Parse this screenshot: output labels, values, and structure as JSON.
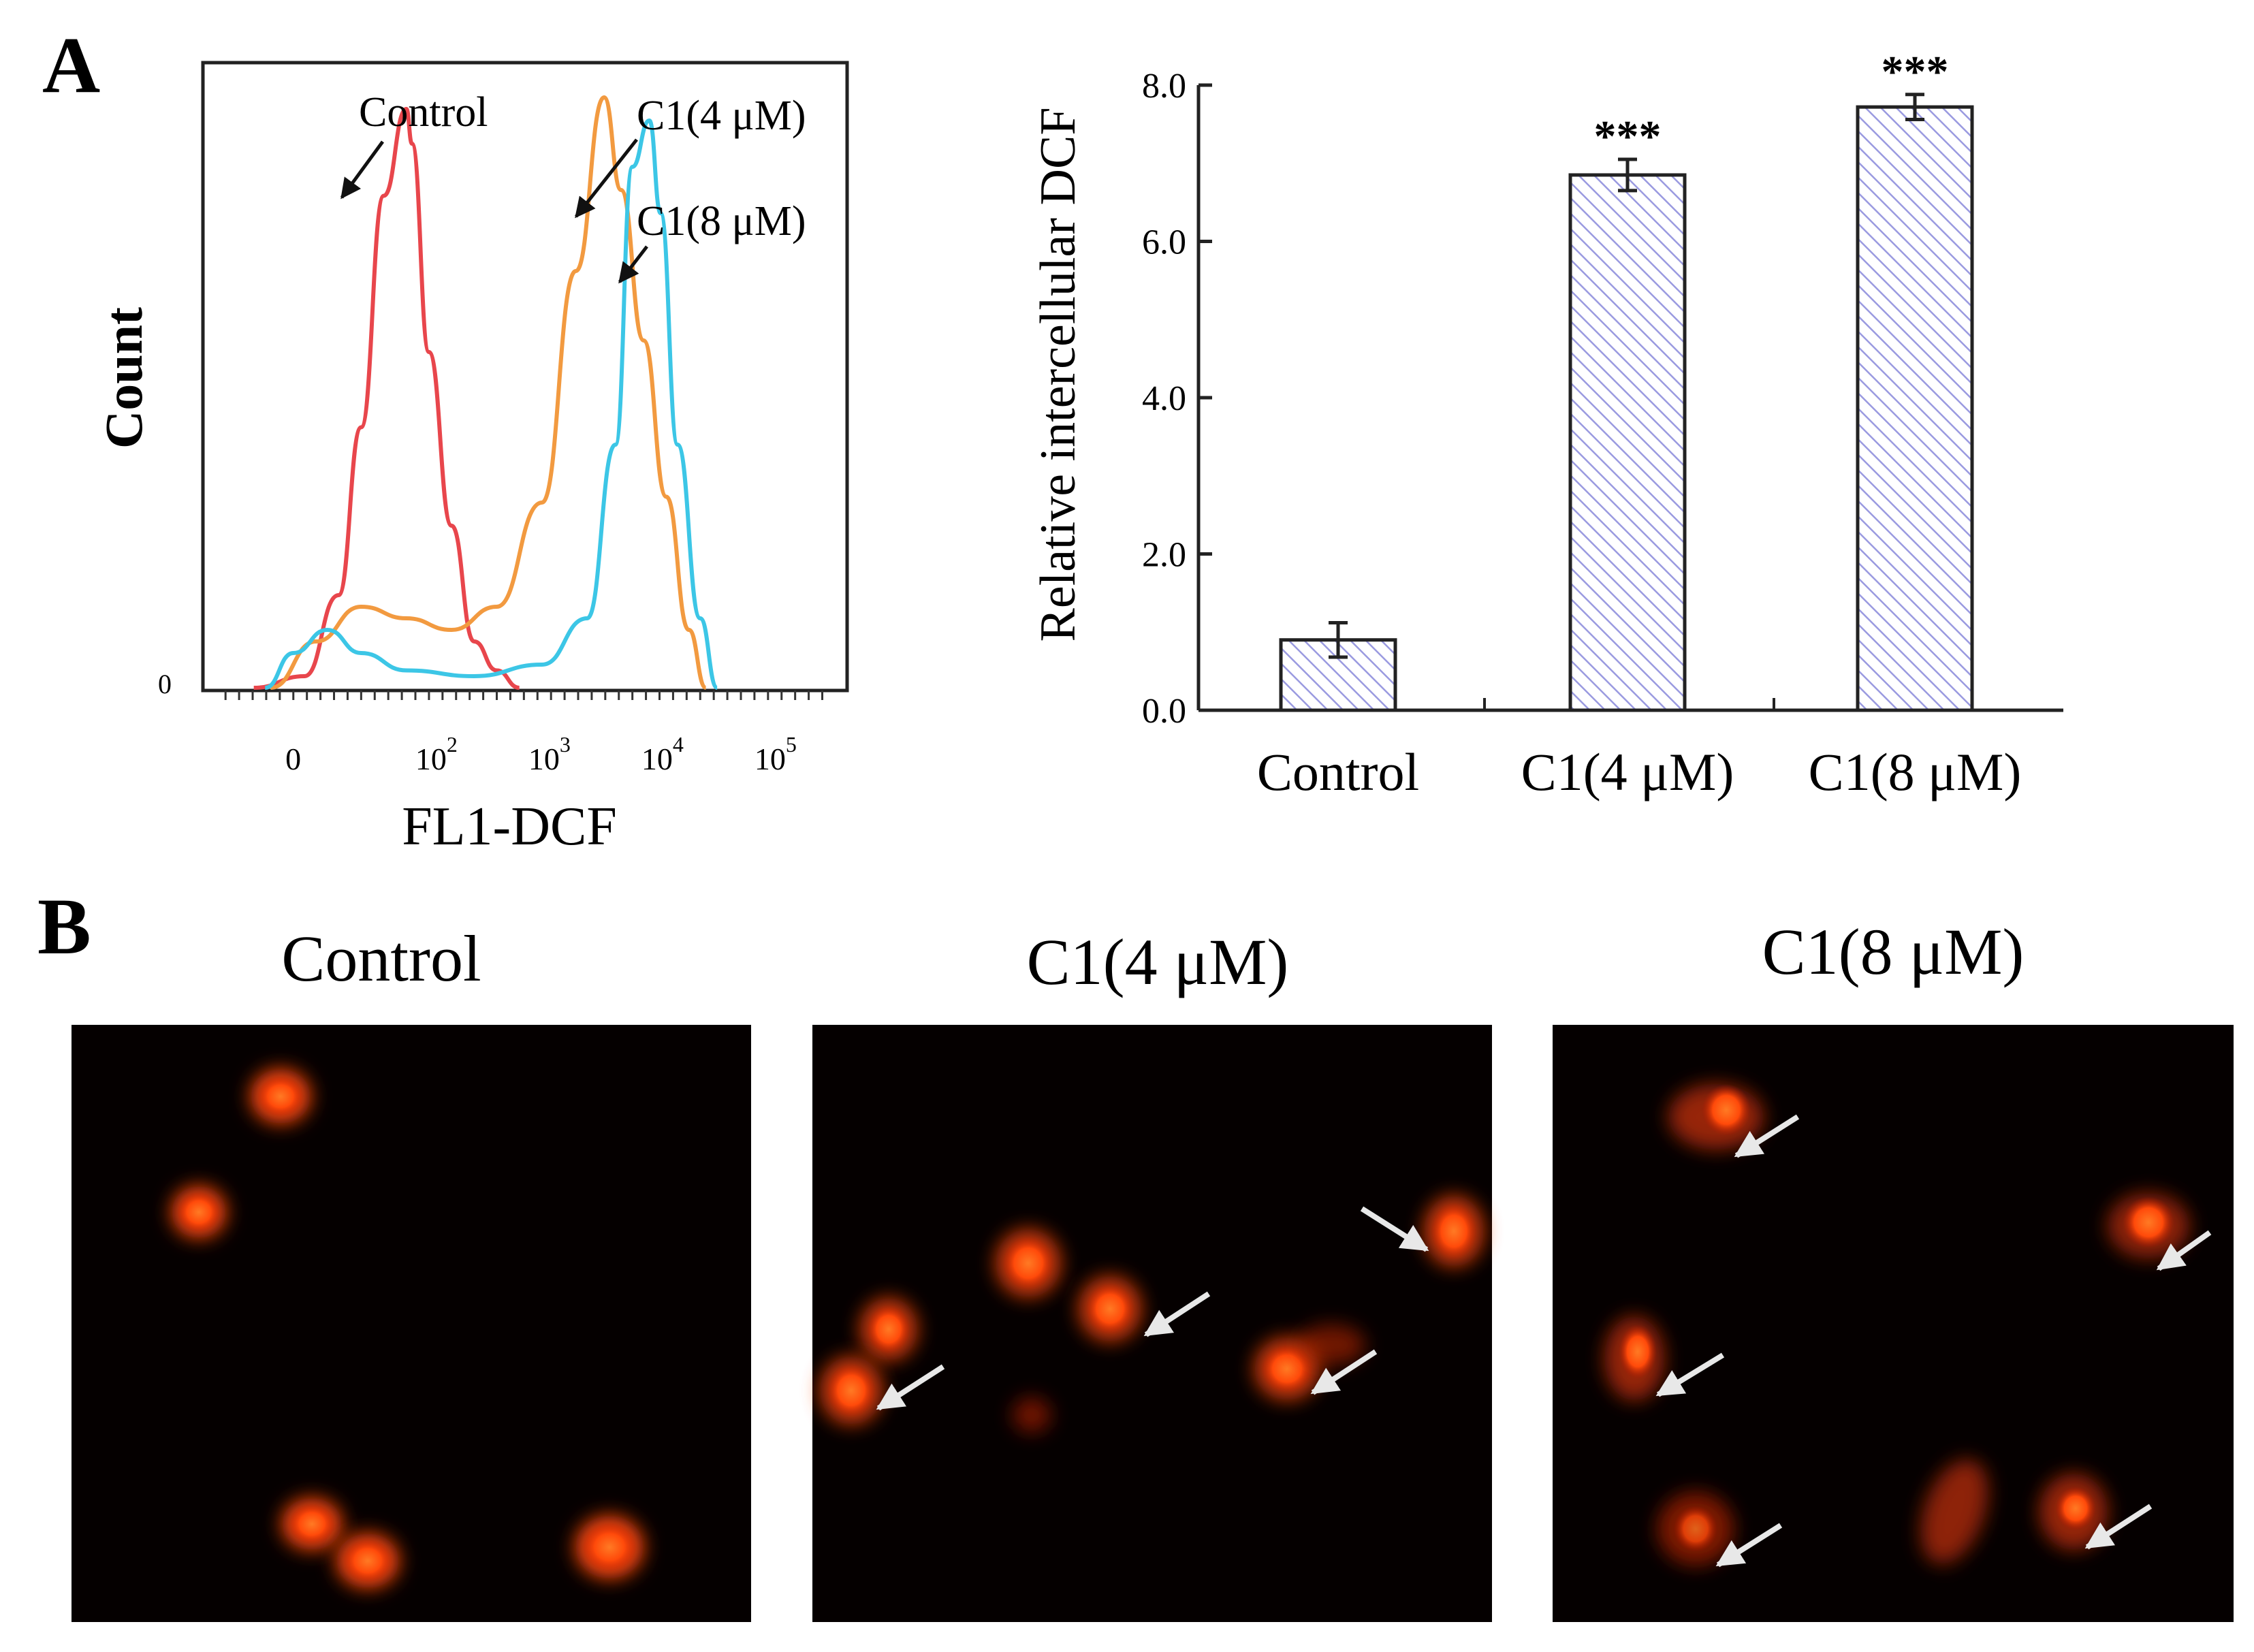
{
  "panel_a_label": "A",
  "panel_b_label": "B",
  "chart_data": [
    {
      "type": "line",
      "title": "",
      "xlabel": "FL1-DCF",
      "ylabel": "Count",
      "x_scale": "log",
      "x_tick_labels": [
        {
          "base": "0",
          "exp": ""
        },
        {
          "base": "10",
          "exp": "2"
        },
        {
          "base": "10",
          "exp": "3"
        },
        {
          "base": "10",
          "exp": "4"
        },
        {
          "base": "10",
          "exp": "5"
        }
      ],
      "y_tick_labels": [
        "0"
      ],
      "grid": false,
      "series": [
        {
          "name": "Control",
          "color": "#e8464c",
          "points": [
            [
              0.45,
              0
            ],
            [
              0.9,
              0.02
            ],
            [
              1.2,
              0.16
            ],
            [
              1.4,
              0.45
            ],
            [
              1.6,
              0.85
            ],
            [
              1.8,
              1.0
            ],
            [
              1.85,
              0.94
            ],
            [
              2.0,
              0.58
            ],
            [
              2.2,
              0.28
            ],
            [
              2.4,
              0.08
            ],
            [
              2.6,
              0.03
            ],
            [
              2.8,
              0.0
            ]
          ]
        },
        {
          "name": "C1(4 μM)",
          "color": "#f29a40",
          "points": [
            [
              0.6,
              0
            ],
            [
              1.0,
              0.08
            ],
            [
              1.4,
              0.14
            ],
            [
              1.8,
              0.12
            ],
            [
              2.2,
              0.1
            ],
            [
              2.6,
              0.14
            ],
            [
              3.0,
              0.32
            ],
            [
              3.3,
              0.72
            ],
            [
              3.55,
              1.02
            ],
            [
              3.7,
              0.86
            ],
            [
              3.9,
              0.6
            ],
            [
              4.1,
              0.33
            ],
            [
              4.3,
              0.1
            ],
            [
              4.45,
              0.0
            ]
          ]
        },
        {
          "name": "C1(8 μM)",
          "color": "#3cc6e6",
          "points": [
            [
              0.55,
              0
            ],
            [
              0.8,
              0.06
            ],
            [
              1.1,
              0.1
            ],
            [
              1.4,
              0.06
            ],
            [
              1.8,
              0.03
            ],
            [
              2.4,
              0.02
            ],
            [
              3.0,
              0.04
            ],
            [
              3.4,
              0.12
            ],
            [
              3.65,
              0.42
            ],
            [
              3.8,
              0.9
            ],
            [
              3.95,
              0.98
            ],
            [
              4.05,
              0.82
            ],
            [
              4.2,
              0.42
            ],
            [
              4.4,
              0.12
            ],
            [
              4.55,
              0.0
            ]
          ]
        }
      ],
      "annotations": [
        "Control",
        "C1(4 μM)",
        "C1(8 μM)"
      ]
    },
    {
      "type": "bar",
      "title": "",
      "xlabel": "",
      "ylabel": "Relative intercellular DCF",
      "categories": [
        "Control",
        "C1(4 μM)",
        "C1(8 μM)"
      ],
      "values": [
        0.9,
        6.85,
        7.72
      ],
      "errors": [
        0.22,
        0.2,
        0.16
      ],
      "significance": [
        "",
        "***",
        "***"
      ],
      "ylim": [
        0,
        8.0
      ],
      "y_tick_labels": [
        "0.0",
        "2.0",
        "4.0",
        "6.0",
        "8.0"
      ],
      "bar_color": "#9a9ae0",
      "grid": false
    }
  ],
  "micrographs": [
    {
      "title": "Control"
    },
    {
      "title": "C1(4 μM)"
    },
    {
      "title": "C1(8 μM)"
    }
  ],
  "colors": {
    "cell": "#ff5a10",
    "background": "#050000",
    "arrow": "#e8e8e8"
  }
}
